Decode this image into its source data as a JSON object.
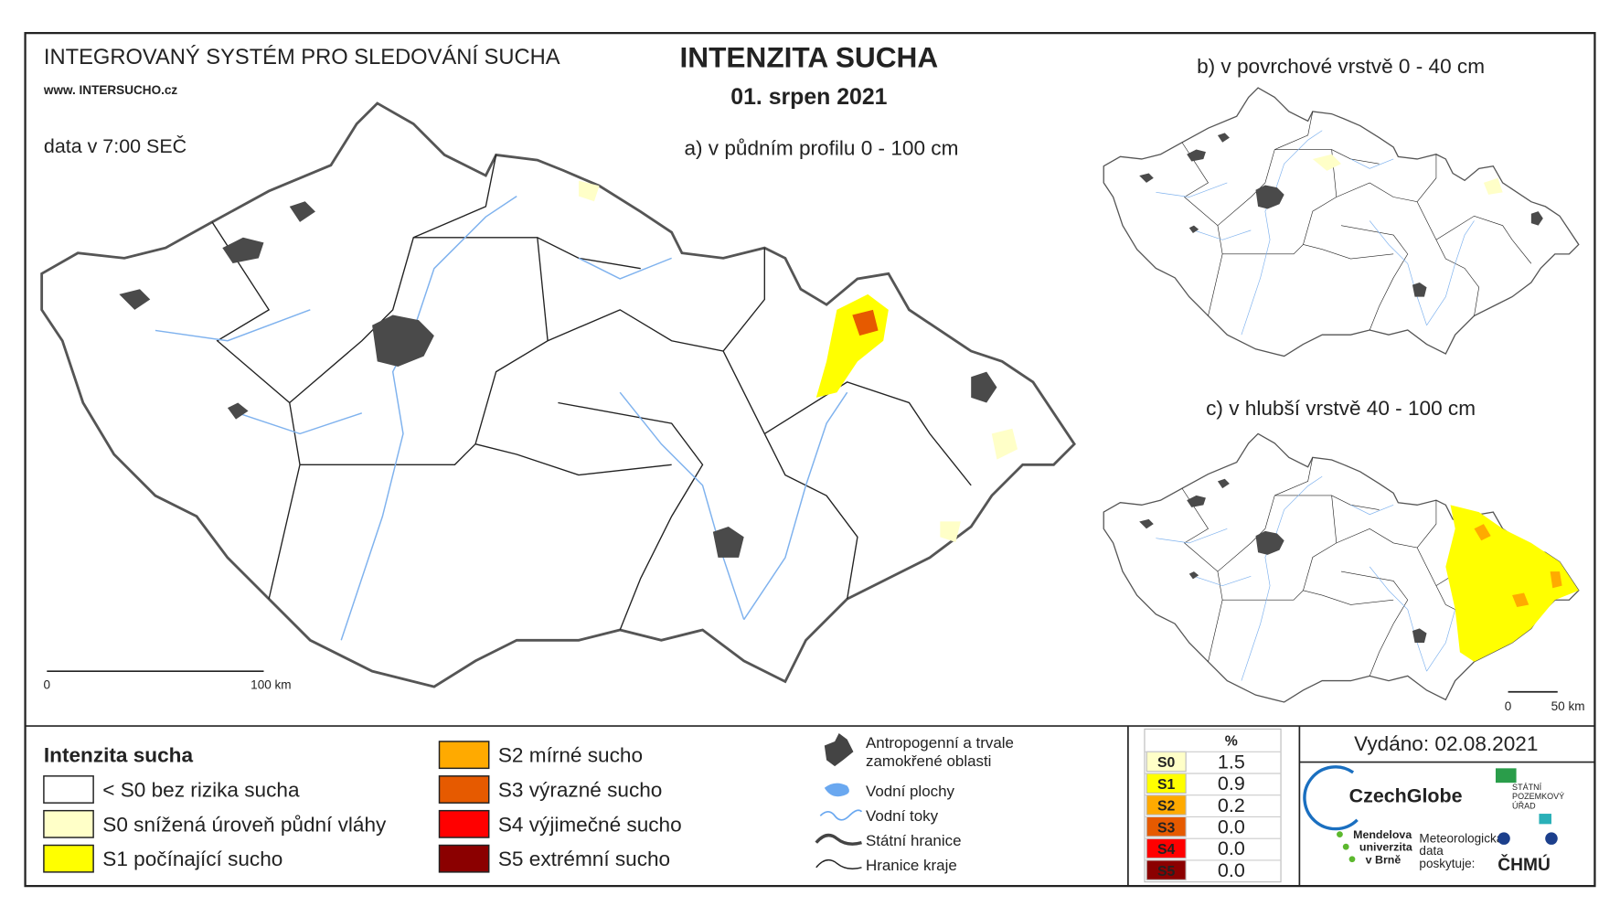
{
  "header": {
    "system": "INTEGROVANÝ SYSTÉM PRO SLEDOVÁNÍ SUCHA",
    "website": "www. INTERSUCHO.cz",
    "time": "data v 7:00 SEČ",
    "title": "INTENZITA SUCHA",
    "date": "01. srpen 2021"
  },
  "maps": [
    {
      "label": "a) v půdním profilu 0 - 100 cm",
      "scale_start": "0",
      "scale_end": "100 km"
    },
    {
      "label": "b) v povrchové vrstvě 0 - 40 cm"
    },
    {
      "label": "c) v hlubší vrstvě 40 - 100 cm",
      "scale_start": "0",
      "scale_end": "50 km"
    }
  ],
  "legend": {
    "title": "Intenzita sucha",
    "classes": [
      {
        "label": "< S0 bez rizika sucha",
        "color": "#ffffff"
      },
      {
        "label": "S0 snížená úroveň půdní vláhy",
        "color": "#ffffc8"
      },
      {
        "label": "S1 počínající sucho",
        "color": "#ffff00"
      },
      {
        "label": "S2 mírné sucho",
        "color": "#ffaa00"
      },
      {
        "label": "S3 výrazné sucho",
        "color": "#e65a00"
      },
      {
        "label": "S4 výjimečné sucho",
        "color": "#ff0000"
      },
      {
        "label": "S5 extrémní sucho",
        "color": "#8b0000"
      }
    ]
  },
  "features": [
    [
      "Antropogenní a trvale",
      "zamokřené oblasti"
    ],
    [
      "Vodní plochy"
    ],
    [
      "Vodní toky"
    ],
    [
      "Státní hranice"
    ],
    [
      "Hranice kraje"
    ]
  ],
  "stats": {
    "header": "%",
    "rows": [
      {
        "class": "S0",
        "value": "1.5",
        "color": "#ffffc8"
      },
      {
        "class": "S1",
        "value": "0.9",
        "color": "#ffff00"
      },
      {
        "class": "S2",
        "value": "0.2",
        "color": "#ffaa00"
      },
      {
        "class": "S3",
        "value": "0.0",
        "color": "#e65a00"
      },
      {
        "class": "S4",
        "value": "0.0",
        "color": "#ff0000"
      },
      {
        "class": "S5",
        "value": "0.0",
        "color": "#8b0000"
      }
    ]
  },
  "issued": "Vydáno: 02.08.2021",
  "logos": {
    "czechglobe": "CzechGlobe",
    "spu": [
      "STÁTNÍ",
      "POZEMKOVÝ",
      "ÚŘAD"
    ],
    "mendelu": [
      "Mendelova",
      "univerzita",
      "v Brně"
    ],
    "chmi_note": [
      "Meteorologická",
      "data",
      "poskytuje:"
    ],
    "chmi": "ČHMÚ"
  }
}
